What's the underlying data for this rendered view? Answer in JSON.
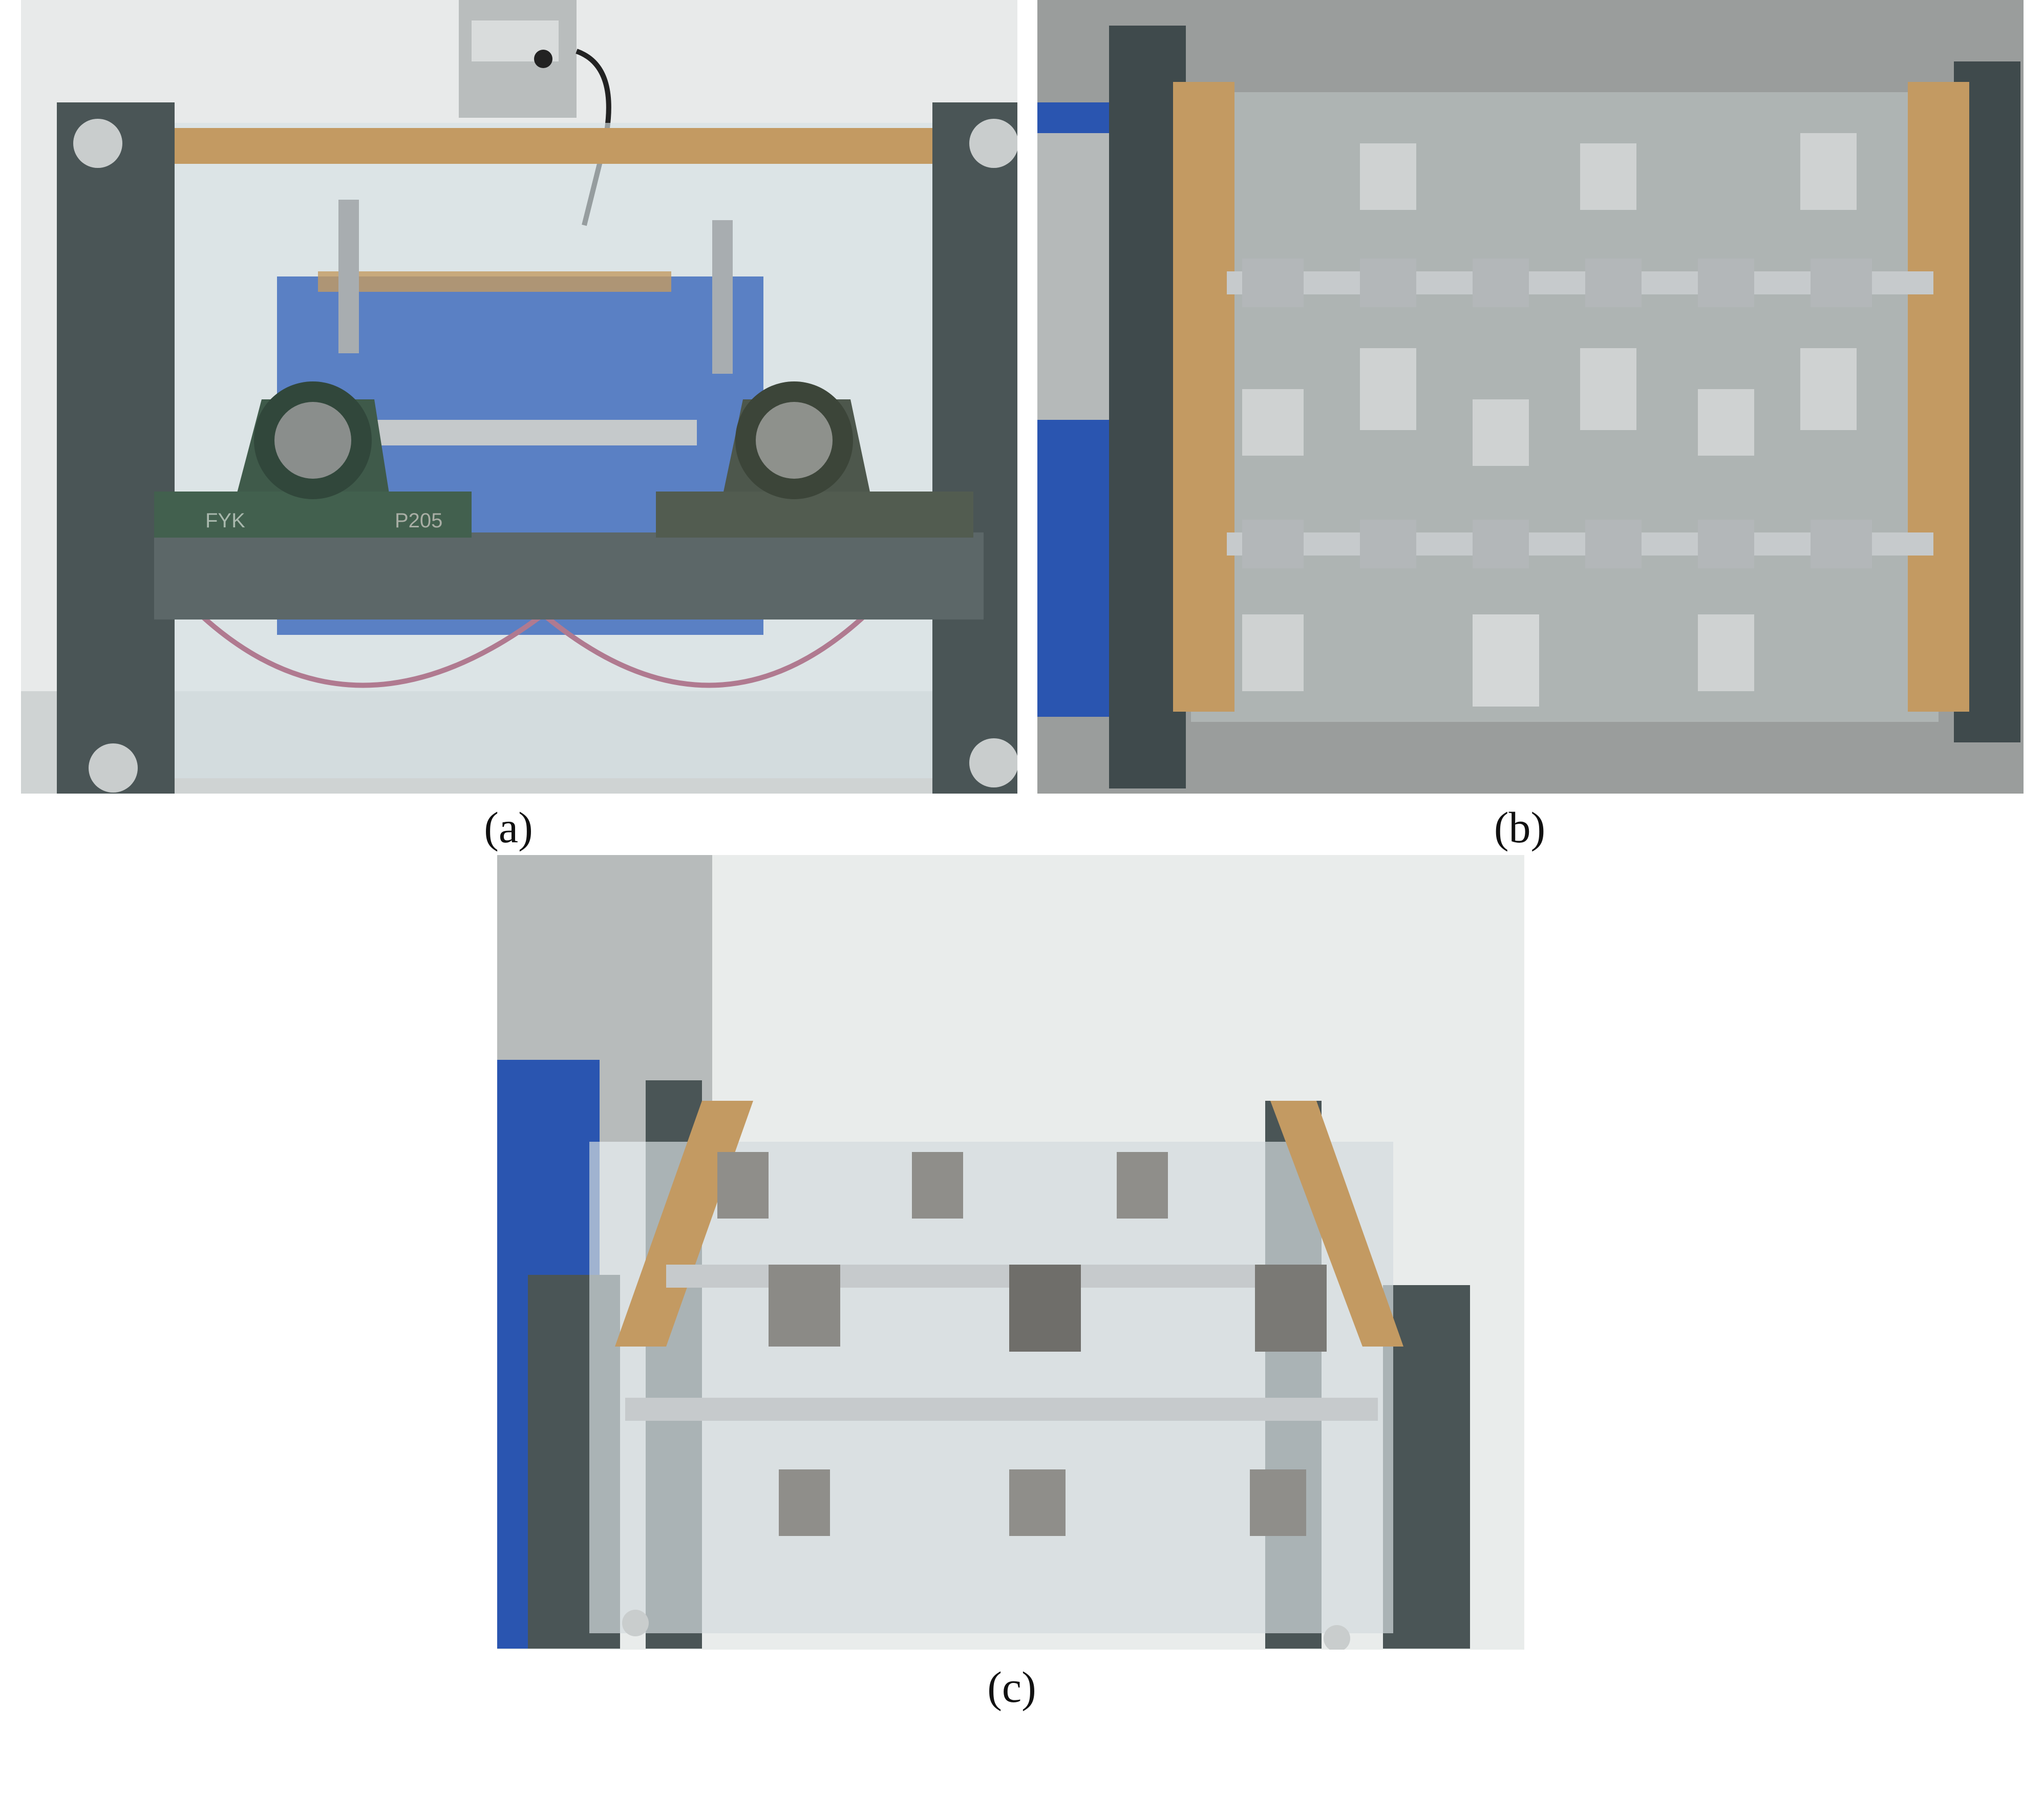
{
  "figure": {
    "captions": {
      "a": "(a)",
      "b": "(b)",
      "c": "(c)"
    }
  },
  "bearing_labels": {
    "left": "FYK",
    "right": "P205"
  },
  "colors": {
    "frame": "#4a5556",
    "wood": "#c39a62",
    "acrylic": "#d8e2e6",
    "steel": "#b8bcbf",
    "motor_blue": "#2a55b0",
    "floor": "#9a9d9c",
    "wall": "#e9eceb"
  }
}
